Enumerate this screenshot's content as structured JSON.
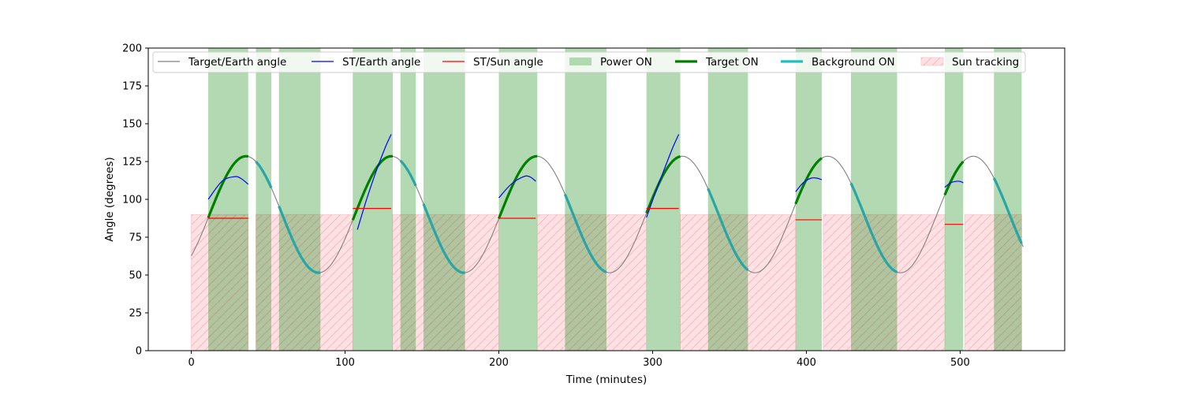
{
  "chart_data": {
    "type": "line",
    "title": "",
    "xlabel": "Time (minutes)",
    "ylabel": "Angle (degrees)",
    "xlim": [
      -28,
      568
    ],
    "ylim": [
      0,
      200
    ],
    "xticks": [
      0,
      100,
      200,
      300,
      400,
      500
    ],
    "yticks": [
      0,
      25,
      50,
      75,
      100,
      125,
      150,
      175,
      200
    ],
    "grid": false,
    "legend_position": "top",
    "colors": {
      "target_earth": "#808080",
      "st_earth": "#0000ff",
      "st_sun": "#ff0000",
      "power": "#b2d8b2",
      "target_on": "#008000",
      "background_on": "#2aa5a5",
      "background_legend": "#1fbfbf",
      "sun_fill": "#ffe1e4",
      "sun_hatch": "#f2b8c0"
    },
    "legend": [
      {
        "label": "Target/Earth angle",
        "style": "line-thin",
        "color": "#808080"
      },
      {
        "label": "ST/Earth angle",
        "style": "line-thin",
        "color": "#0000ff"
      },
      {
        "label": "ST/Sun angle",
        "style": "line-thin",
        "color": "#ff0000"
      },
      {
        "label": "Power ON",
        "style": "patch",
        "color": "#b2d8b2"
      },
      {
        "label": "Target ON",
        "style": "line-thick",
        "color": "#008000"
      },
      {
        "label": "Background ON",
        "style": "line-thick",
        "color": "#1fbfbf"
      },
      {
        "label": "Sun tracking",
        "style": "hatch",
        "color": "#ffe1e4"
      }
    ],
    "target_earth_model": {
      "period": 94.6,
      "mean": 90,
      "amplitude": 38.5,
      "phase_peak_time": 35.5,
      "t_start": 0,
      "t_end": 541
    },
    "series": [
      {
        "name": "Target/Earth angle",
        "kind": "curve",
        "t_range": [
          0,
          541
        ]
      },
      {
        "name": "ST/Earth angle",
        "kind": "arcs",
        "segments": [
          {
            "points": [
              [
                11,
                100
              ],
              [
                20,
                112
              ],
              [
                28,
                115
              ],
              [
                32,
                114
              ],
              [
                37,
                110
              ]
            ]
          },
          {
            "points": [
              [
                108,
                80
              ],
              [
                114,
                100
              ],
              [
                120,
                118
              ],
              [
                126,
                134
              ],
              [
                130,
                143
              ]
            ]
          },
          {
            "points": [
              [
                200,
                101
              ],
              [
                208,
                110
              ],
              [
                216,
                115
              ],
              [
                220,
                115
              ],
              [
                224,
                112
              ]
            ]
          },
          {
            "points": [
              [
                296,
                88
              ],
              [
                302,
                105
              ],
              [
                308,
                121
              ],
              [
                313,
                134
              ],
              [
                317,
                143
              ]
            ]
          },
          {
            "points": [
              [
                393,
                105
              ],
              [
                398,
                111
              ],
              [
                403,
                114
              ],
              [
                407,
                114
              ],
              [
                410,
                113
              ]
            ]
          },
          {
            "points": [
              [
                490,
                108
              ],
              [
                494,
                111
              ],
              [
                499,
                112
              ],
              [
                502,
                111
              ]
            ]
          }
        ]
      },
      {
        "name": "ST/Sun angle",
        "kind": "levels",
        "segments": [
          {
            "x": [
              11,
              37
            ],
            "y": 87.5
          },
          {
            "x": [
              105,
              130
            ],
            "y": 94
          },
          {
            "x": [
              200,
              224
            ],
            "y": 87.5
          },
          {
            "x": [
              296,
              317
            ],
            "y": 94
          },
          {
            "x": [
              393,
              410
            ],
            "y": 86.5
          },
          {
            "x": [
              490,
              502
            ],
            "y": 83.5
          }
        ]
      },
      {
        "name": "Power ON",
        "kind": "spans",
        "spans": [
          [
            11,
            37
          ],
          [
            42,
            52
          ],
          [
            57,
            84
          ],
          [
            105,
            131
          ],
          [
            136,
            146
          ],
          [
            151,
            178
          ],
          [
            200,
            225
          ],
          [
            243,
            270
          ],
          [
            296,
            318
          ],
          [
            336,
            362
          ],
          [
            393,
            410
          ],
          [
            429,
            459
          ],
          [
            490,
            502
          ],
          [
            522,
            540
          ]
        ]
      },
      {
        "name": "Target ON",
        "kind": "curve-highlight",
        "ranges": [
          [
            11,
            37
          ],
          [
            105,
            131
          ],
          [
            200,
            225
          ],
          [
            296,
            318
          ],
          [
            393,
            410
          ],
          [
            490,
            502
          ]
        ]
      },
      {
        "name": "Background ON",
        "kind": "curve-highlight",
        "ranges": [
          [
            42,
            52
          ],
          [
            57,
            84
          ],
          [
            136,
            146
          ],
          [
            151,
            178
          ],
          [
            243,
            270
          ],
          [
            336,
            362
          ],
          [
            429,
            459
          ],
          [
            522,
            540
          ]
        ]
      },
      {
        "name": "Sun tracking",
        "kind": "spans",
        "ymax": 90,
        "spans": [
          [
            0,
            37
          ],
          [
            42,
            105
          ],
          [
            131,
            200
          ],
          [
            225,
            296
          ],
          [
            318,
            393
          ],
          [
            411,
            490
          ],
          [
            503,
            540
          ]
        ]
      }
    ]
  }
}
